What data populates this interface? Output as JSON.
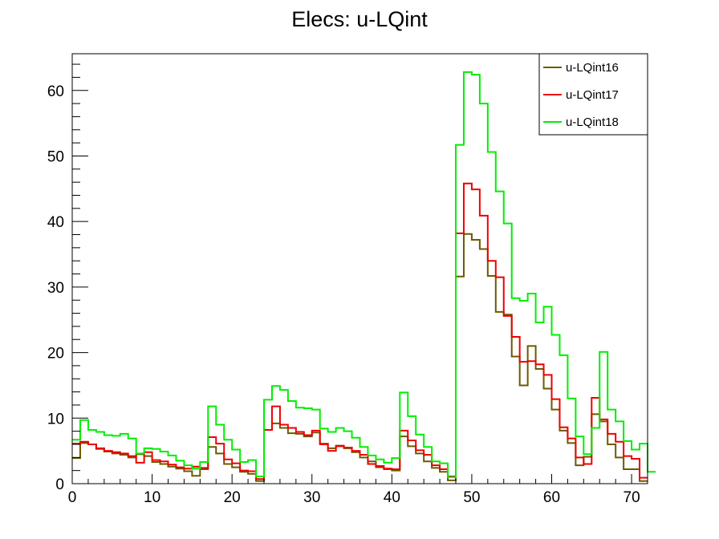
{
  "chart_data": {
    "type": "line",
    "title": "Elecs: u-LQint",
    "xlabel": "",
    "ylabel": "",
    "xlim": [
      0,
      72
    ],
    "ylim": [
      0,
      65.6
    ],
    "x_ticks": [
      0,
      10,
      20,
      30,
      40,
      50,
      60,
      70
    ],
    "y_ticks": [
      0,
      10,
      20,
      30,
      40,
      50,
      60
    ],
    "bin_width": 1,
    "grid": false,
    "legend_position": "top-right",
    "series": [
      {
        "name": "u-LQint16",
        "color": "#6b5a00",
        "values": [
          3.9,
          6.2,
          6.0,
          5.3,
          4.9,
          4.6,
          4.4,
          4.0,
          4.5,
          4.2,
          3.3,
          3.0,
          2.6,
          2.3,
          1.9,
          1.2,
          2.2,
          5.6,
          4.6,
          3.0,
          2.5,
          1.8,
          1.5,
          0.4,
          8.2,
          9.2,
          8.5,
          7.7,
          7.6,
          7.2,
          7.8,
          6.1,
          5.4,
          5.8,
          5.4,
          4.8,
          4.0,
          3.4,
          2.5,
          2.2,
          2.0,
          7.2,
          5.7,
          4.6,
          3.4,
          2.4,
          1.8,
          0.5,
          31.6,
          38.1,
          37.2,
          35.8,
          31.7,
          26.2,
          25.8,
          19.4,
          15.0,
          21.0,
          17.5,
          14.5,
          11.3,
          8.1,
          6.2,
          2.8,
          4.1,
          10.6,
          9.5,
          6.0,
          4.0,
          2.2,
          2.2,
          0.4
        ]
      },
      {
        "name": "u-LQint17",
        "color": "#ee0000",
        "values": [
          6.1,
          6.4,
          6.0,
          5.4,
          5.0,
          4.8,
          4.6,
          4.2,
          3.2,
          4.8,
          3.6,
          3.4,
          2.9,
          2.5,
          2.3,
          2.6,
          2.4,
          7.1,
          6.1,
          3.7,
          3.1,
          2.0,
          1.9,
          0.7,
          8.2,
          11.8,
          9.0,
          8.5,
          7.9,
          7.4,
          8.1,
          6.0,
          5.0,
          5.7,
          5.5,
          5.0,
          4.4,
          3.0,
          2.7,
          2.3,
          2.2,
          8.1,
          6.6,
          5.1,
          4.4,
          2.8,
          2.2,
          1.1,
          38.2,
          45.8,
          44.9,
          40.9,
          34.0,
          31.5,
          25.6,
          22.4,
          18.6,
          18.7,
          18.2,
          16.6,
          12.9,
          8.6,
          6.9,
          4.0,
          3.0,
          13.1,
          9.8,
          7.6,
          6.4,
          4.2,
          3.8,
          0.9
        ]
      },
      {
        "name": "u-LQint18",
        "color": "#00ee00",
        "values": [
          6.7,
          9.7,
          8.2,
          7.9,
          7.4,
          7.3,
          7.6,
          6.9,
          4.6,
          5.4,
          5.3,
          4.9,
          4.3,
          3.5,
          2.8,
          2.3,
          3.3,
          11.8,
          9.0,
          6.7,
          5.2,
          3.3,
          3.6,
          1.1,
          12.8,
          14.9,
          14.3,
          12.6,
          11.6,
          11.5,
          11.3,
          8.4,
          7.9,
          8.5,
          8.0,
          7.0,
          5.6,
          4.3,
          3.7,
          3.2,
          3.9,
          13.9,
          10.3,
          7.5,
          5.6,
          3.4,
          3.1,
          1.0,
          51.7,
          62.8,
          62.4,
          58.0,
          50.6,
          44.6,
          39.7,
          28.3,
          27.9,
          29.0,
          24.6,
          27.0,
          22.7,
          19.6,
          13.0,
          7.2,
          4.5,
          8.5,
          20.1,
          11.3,
          9.5,
          6.5,
          5.2,
          6.1,
          1.8
        ]
      }
    ]
  }
}
